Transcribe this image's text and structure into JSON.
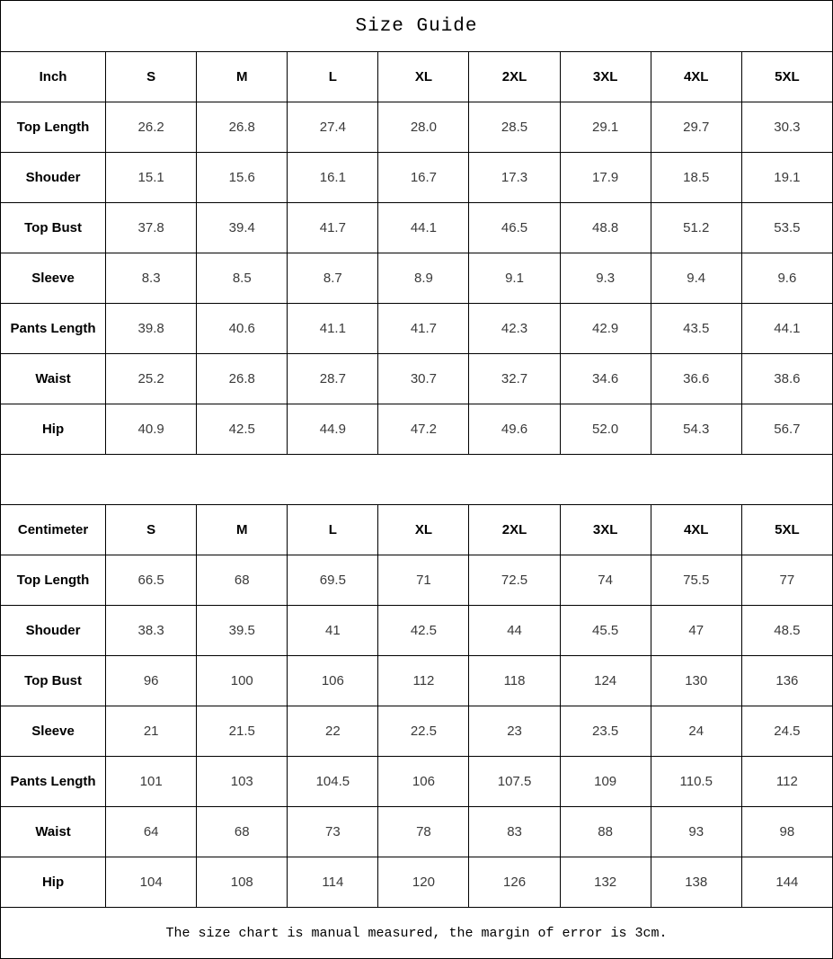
{
  "title": "Size Guide",
  "footer": "The size chart is manual measured, the margin of error is 3cm.",
  "sizes": [
    "S",
    "M",
    "L",
    "XL",
    "2XL",
    "3XL",
    "4XL",
    "5XL"
  ],
  "tables": [
    {
      "unit_label": "Inch",
      "rows": [
        {
          "label": "Top Length",
          "values": [
            "26.2",
            "26.8",
            "27.4",
            "28.0",
            "28.5",
            "29.1",
            "29.7",
            "30.3"
          ]
        },
        {
          "label": "Shouder",
          "values": [
            "15.1",
            "15.6",
            "16.1",
            "16.7",
            "17.3",
            "17.9",
            "18.5",
            "19.1"
          ]
        },
        {
          "label": "Top Bust",
          "values": [
            "37.8",
            "39.4",
            "41.7",
            "44.1",
            "46.5",
            "48.8",
            "51.2",
            "53.5"
          ]
        },
        {
          "label": "Sleeve",
          "values": [
            "8.3",
            "8.5",
            "8.7",
            "8.9",
            "9.1",
            "9.3",
            "9.4",
            "9.6"
          ]
        },
        {
          "label": "Pants Length",
          "values": [
            "39.8",
            "40.6",
            "41.1",
            "41.7",
            "42.3",
            "42.9",
            "43.5",
            "44.1"
          ]
        },
        {
          "label": "Waist",
          "values": [
            "25.2",
            "26.8",
            "28.7",
            "30.7",
            "32.7",
            "34.6",
            "36.6",
            "38.6"
          ]
        },
        {
          "label": "Hip",
          "values": [
            "40.9",
            "42.5",
            "44.9",
            "47.2",
            "49.6",
            "52.0",
            "54.3",
            "56.7"
          ]
        }
      ]
    },
    {
      "unit_label": "Centimeter",
      "rows": [
        {
          "label": "Top Length",
          "values": [
            "66.5",
            "68",
            "69.5",
            "71",
            "72.5",
            "74",
            "75.5",
            "77"
          ]
        },
        {
          "label": "Shouder",
          "values": [
            "38.3",
            "39.5",
            "41",
            "42.5",
            "44",
            "45.5",
            "47",
            "48.5"
          ]
        },
        {
          "label": "Top Bust",
          "values": [
            "96",
            "100",
            "106",
            "112",
            "118",
            "124",
            "130",
            "136"
          ]
        },
        {
          "label": "Sleeve",
          "values": [
            "21",
            "21.5",
            "22",
            "22.5",
            "23",
            "23.5",
            "24",
            "24.5"
          ]
        },
        {
          "label": "Pants Length",
          "values": [
            "101",
            "103",
            "104.5",
            "106",
            "107.5",
            "109",
            "110.5",
            "112"
          ]
        },
        {
          "label": "Waist",
          "values": [
            "64",
            "68",
            "73",
            "78",
            "83",
            "88",
            "93",
            "98"
          ]
        },
        {
          "label": "Hip",
          "values": [
            "104",
            "108",
            "114",
            "120",
            "126",
            "132",
            "138",
            "144"
          ]
        }
      ]
    }
  ],
  "chart_data": [
    {
      "type": "table",
      "title": "Size Guide (Inch)",
      "columns": [
        "Inch",
        "S",
        "M",
        "L",
        "XL",
        "2XL",
        "3XL",
        "4XL",
        "5XL"
      ],
      "rows": [
        [
          "Top Length",
          26.2,
          26.8,
          27.4,
          28.0,
          28.5,
          29.1,
          29.7,
          30.3
        ],
        [
          "Shouder",
          15.1,
          15.6,
          16.1,
          16.7,
          17.3,
          17.9,
          18.5,
          19.1
        ],
        [
          "Top Bust",
          37.8,
          39.4,
          41.7,
          44.1,
          46.5,
          48.8,
          51.2,
          53.5
        ],
        [
          "Sleeve",
          8.3,
          8.5,
          8.7,
          8.9,
          9.1,
          9.3,
          9.4,
          9.6
        ],
        [
          "Pants Length",
          39.8,
          40.6,
          41.1,
          41.7,
          42.3,
          42.9,
          43.5,
          44.1
        ],
        [
          "Waist",
          25.2,
          26.8,
          28.7,
          30.7,
          32.7,
          34.6,
          36.6,
          38.6
        ],
        [
          "Hip",
          40.9,
          42.5,
          44.9,
          47.2,
          49.6,
          52.0,
          54.3,
          56.7
        ]
      ]
    },
    {
      "type": "table",
      "title": "Size Guide (Centimeter)",
      "columns": [
        "Centimeter",
        "S",
        "M",
        "L",
        "XL",
        "2XL",
        "3XL",
        "4XL",
        "5XL"
      ],
      "rows": [
        [
          "Top Length",
          66.5,
          68,
          69.5,
          71,
          72.5,
          74,
          75.5,
          77
        ],
        [
          "Shouder",
          38.3,
          39.5,
          41,
          42.5,
          44,
          45.5,
          47,
          48.5
        ],
        [
          "Top Bust",
          96,
          100,
          106,
          112,
          118,
          124,
          130,
          136
        ],
        [
          "Sleeve",
          21,
          21.5,
          22,
          22.5,
          23,
          23.5,
          24,
          24.5
        ],
        [
          "Pants Length",
          101,
          103,
          104.5,
          106,
          107.5,
          109,
          110.5,
          112
        ],
        [
          "Waist",
          64,
          68,
          73,
          78,
          83,
          88,
          93,
          98
        ],
        [
          "Hip",
          104,
          108,
          114,
          120,
          126,
          132,
          138,
          144
        ]
      ]
    }
  ],
  "colors": {
    "border": "#000000",
    "background": "#ffffff",
    "label_text": "#000000",
    "value_text": "#3a3a3a"
  }
}
